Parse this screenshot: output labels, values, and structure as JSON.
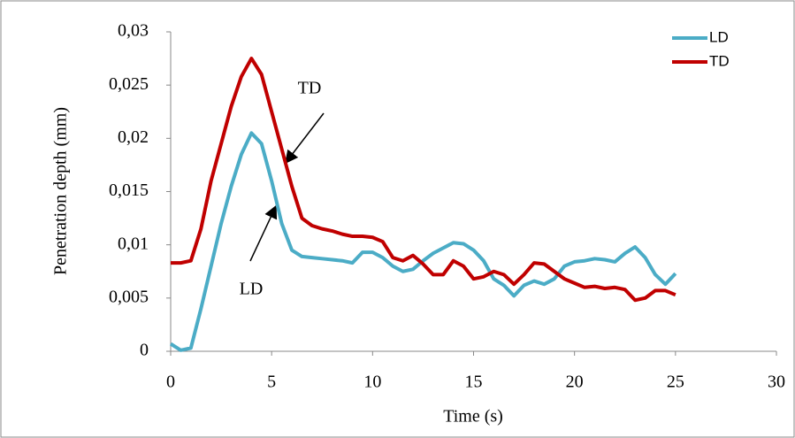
{
  "chart_data": {
    "type": "line",
    "y_label": "Penetration depth (mm)",
    "x_label": "Time (s)",
    "annotations": [
      "TD",
      "LD"
    ],
    "legend": "top-right",
    "xlim": [
      0,
      30
    ],
    "xticks": [
      0,
      5,
      10,
      15,
      20,
      25,
      30
    ],
    "ylim": [
      0,
      0.03
    ],
    "yticks": [
      0,
      {
        "value": 0.005,
        "label": "0,005"
      },
      {
        "value": 0.01,
        "label": "0,01"
      },
      {
        "value": 0.015,
        "label": "0,015"
      },
      {
        "value": 0.02,
        "label": "0,02"
      },
      {
        "value": 0.025,
        "label": "0,025"
      },
      {
        "value": 0.03,
        "label": "0,03"
      }
    ],
    "x": [
      0,
      0.5,
      1,
      1.5,
      2,
      2.5,
      3,
      3.5,
      4,
      4.5,
      5,
      5.5,
      6,
      6.5,
      7,
      7.5,
      8,
      8.5,
      9,
      9.5,
      10,
      10.5,
      11,
      11.5,
      12,
      12.5,
      13,
      13.5,
      14,
      14.5,
      15,
      15.5,
      16,
      16.5,
      17,
      17.5,
      18,
      18.5,
      19,
      19.5,
      20,
      20.5,
      21,
      21.5,
      22,
      22.5,
      23,
      23.5,
      24,
      24.5,
      25
    ],
    "series": [
      {
        "name": "LD",
        "color": "#4bacc6",
        "values": [
          0.0007,
          0.0001,
          0.0003,
          0.004,
          0.008,
          0.012,
          0.0155,
          0.0185,
          0.0205,
          0.0195,
          0.016,
          0.012,
          0.0095,
          0.0089,
          0.0088,
          0.0087,
          0.0086,
          0.0085,
          0.0083,
          0.0093,
          0.0093,
          0.0088,
          0.008,
          0.0075,
          0.0077,
          0.0085,
          0.0092,
          0.0097,
          0.0102,
          0.0101,
          0.0095,
          0.0085,
          0.0068,
          0.0062,
          0.0052,
          0.0062,
          0.0066,
          0.0063,
          0.0068,
          0.008,
          0.0084,
          0.0085,
          0.0087,
          0.0086,
          0.0084,
          0.0092,
          0.0098,
          0.0088,
          0.0072,
          0.0063,
          0.0073
        ]
      },
      {
        "name": "TD",
        "color": "#c00000",
        "values": [
          0.0083,
          0.0083,
          0.0085,
          0.0115,
          0.016,
          0.0195,
          0.023,
          0.0258,
          0.0275,
          0.026,
          0.0225,
          0.019,
          0.0155,
          0.0125,
          0.0118,
          0.0115,
          0.0113,
          0.011,
          0.0108,
          0.0108,
          0.0107,
          0.0103,
          0.0088,
          0.0085,
          0.009,
          0.0082,
          0.0072,
          0.0072,
          0.0085,
          0.008,
          0.0068,
          0.007,
          0.0075,
          0.0072,
          0.0063,
          0.0072,
          0.0083,
          0.0082,
          0.0075,
          0.0068,
          0.0064,
          0.006,
          0.0061,
          0.0059,
          0.006,
          0.0058,
          0.0048,
          0.005,
          0.0057,
          0.0057,
          0.0053
        ]
      }
    ]
  }
}
